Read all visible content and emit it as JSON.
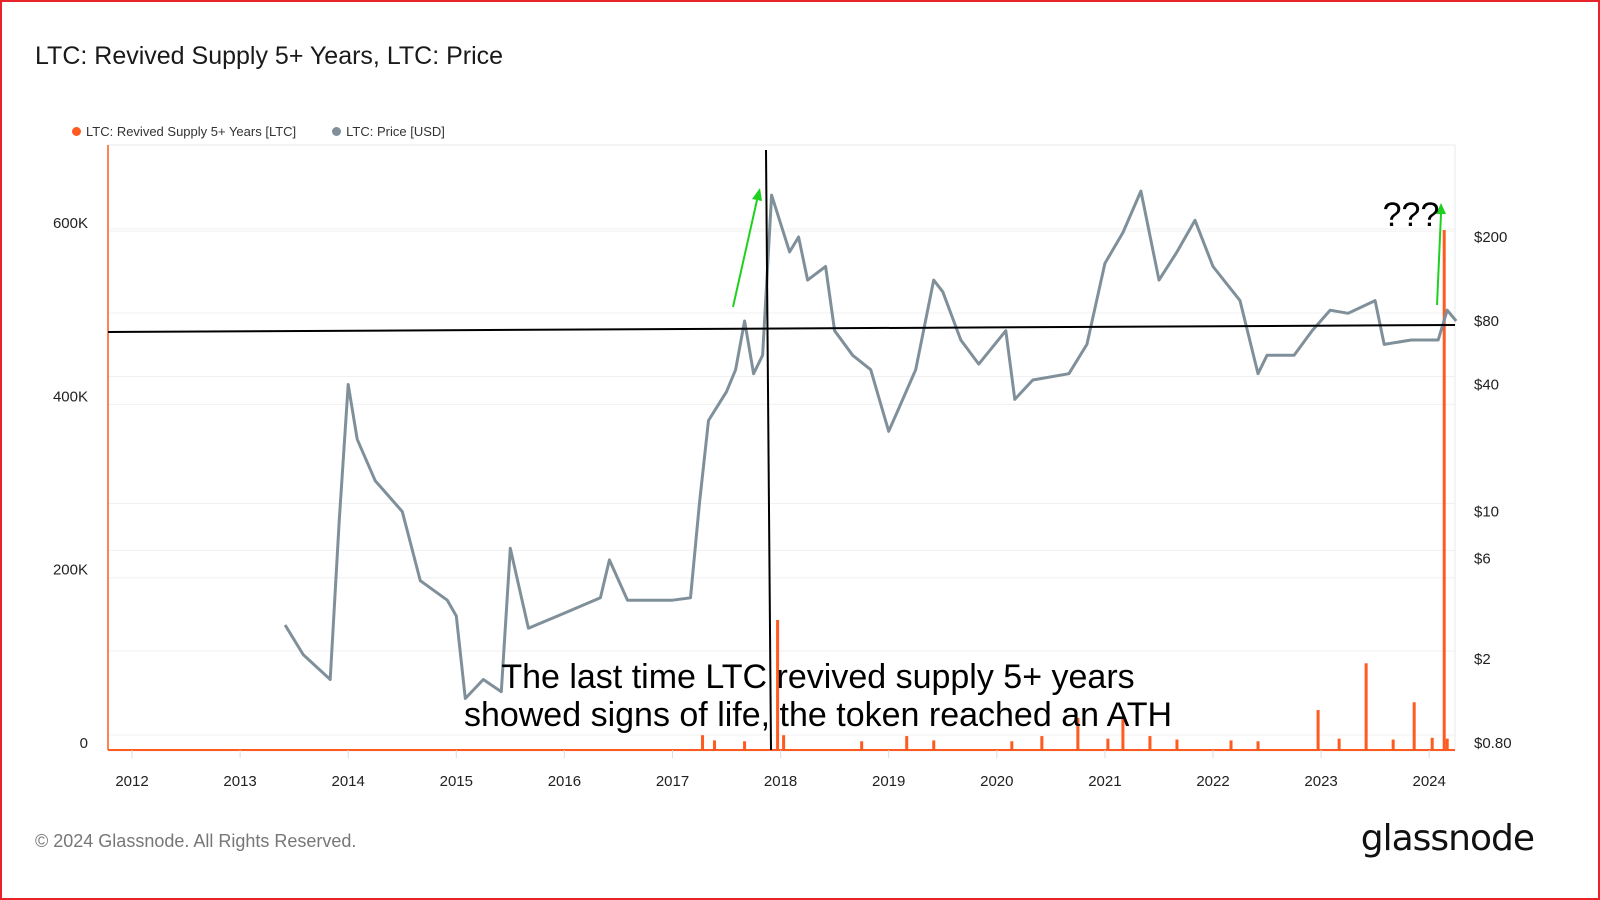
{
  "footer": {
    "copyright": "© 2024 Glassnode. All Rights Reserved.",
    "logo": "glassnode"
  },
  "colors": {
    "supply": "#ff5a1f",
    "price": "#80909a",
    "arrow": "#1fd11f",
    "annotation_line": "#000000",
    "border": "#e8242b"
  },
  "chart_data": {
    "type": "bar+line",
    "title": "LTC: Revived Supply 5+ Years, LTC: Price",
    "legend_placement": "top-left",
    "grid": true,
    "x_ticks": [
      "2012",
      "2013",
      "2014",
      "2015",
      "2016",
      "2017",
      "2018",
      "2019",
      "2020",
      "2021",
      "2022",
      "2023",
      "2024"
    ],
    "y_left": {
      "ticks": [
        "0",
        "200K",
        "400K",
        "600K"
      ],
      "tick_values": [
        0,
        200000,
        400000,
        600000
      ],
      "range": [
        0,
        700000
      ]
    },
    "y_right": {
      "scale": "log",
      "ticks": [
        "$0.80",
        "$2",
        "$6",
        "$10",
        "$40",
        "$80",
        "$200"
      ],
      "tick_values": [
        0.8,
        2,
        6,
        10,
        40,
        80,
        200
      ]
    },
    "series": [
      {
        "name": "LTC: Revived Supply 5+ Years [LTC]",
        "type": "bar",
        "axis": "left",
        "points": [
          [
            "2017-04",
            9000
          ],
          [
            "2017-05",
            3000
          ],
          [
            "2017-09",
            2000
          ],
          [
            "2017-12",
            142000
          ],
          [
            "2018-01",
            9000
          ],
          [
            "2018-10",
            2000
          ],
          [
            "2019-03",
            8000
          ],
          [
            "2019-06",
            3000
          ],
          [
            "2020-02",
            2000
          ],
          [
            "2020-06",
            8000
          ],
          [
            "2020-10",
            29000
          ],
          [
            "2021-01",
            5000
          ],
          [
            "2021-03",
            30000
          ],
          [
            "2021-06",
            8000
          ],
          [
            "2021-09",
            4000
          ],
          [
            "2022-03",
            3000
          ],
          [
            "2022-06",
            2000
          ],
          [
            "2022-12",
            38000
          ],
          [
            "2023-03",
            5000
          ],
          [
            "2023-06",
            92000
          ],
          [
            "2023-09",
            4000
          ],
          [
            "2023-11",
            47000
          ],
          [
            "2024-01",
            6000
          ],
          [
            "2024-02",
            592000
          ],
          [
            "2024-03",
            5000
          ]
        ]
      },
      {
        "name": "LTC: Price [USD]",
        "type": "line",
        "axis": "right",
        "points": [
          [
            "2013-06",
            2.9
          ],
          [
            "2013-08",
            2.1
          ],
          [
            "2013-11",
            1.6
          ],
          [
            "2013-12",
            9
          ],
          [
            "2014-01",
            40
          ],
          [
            "2014-02",
            22
          ],
          [
            "2014-04",
            14
          ],
          [
            "2014-07",
            10
          ],
          [
            "2014-09",
            4.7
          ],
          [
            "2014-12",
            3.8
          ],
          [
            "2015-01",
            3.2
          ],
          [
            "2015-02",
            1.3
          ],
          [
            "2015-04",
            1.6
          ],
          [
            "2015-06",
            1.4
          ],
          [
            "2015-07",
            6.7
          ],
          [
            "2015-09",
            2.8
          ],
          [
            "2016-01",
            3.3
          ],
          [
            "2016-05",
            3.9
          ],
          [
            "2016-06",
            5.9
          ],
          [
            "2016-08",
            3.8
          ],
          [
            "2017-01",
            3.8
          ],
          [
            "2017-03",
            3.9
          ],
          [
            "2017-04",
            11
          ],
          [
            "2017-05",
            27
          ],
          [
            "2017-07",
            37
          ],
          [
            "2017-08",
            47
          ],
          [
            "2017-09",
            80
          ],
          [
            "2017-10",
            45
          ],
          [
            "2017-11",
            55
          ],
          [
            "2017-12",
            316
          ],
          [
            "2018-02",
            170
          ],
          [
            "2018-03",
            200
          ],
          [
            "2018-04",
            125
          ],
          [
            "2018-06",
            145
          ],
          [
            "2018-07",
            72
          ],
          [
            "2018-09",
            55
          ],
          [
            "2018-11",
            47
          ],
          [
            "2019-01",
            24
          ],
          [
            "2019-02",
            30
          ],
          [
            "2019-04",
            47
          ],
          [
            "2019-06",
            125
          ],
          [
            "2019-07",
            110
          ],
          [
            "2019-09",
            65
          ],
          [
            "2019-11",
            50
          ],
          [
            "2020-02",
            72
          ],
          [
            "2020-03",
            34
          ],
          [
            "2020-05",
            42
          ],
          [
            "2020-09",
            45
          ],
          [
            "2020-11",
            62
          ],
          [
            "2021-01",
            150
          ],
          [
            "2021-03",
            210
          ],
          [
            "2021-05",
            330
          ],
          [
            "2021-07",
            125
          ],
          [
            "2021-09",
            170
          ],
          [
            "2021-11",
            240
          ],
          [
            "2022-01",
            145
          ],
          [
            "2022-04",
            100
          ],
          [
            "2022-06",
            45
          ],
          [
            "2022-07",
            55
          ],
          [
            "2022-10",
            55
          ],
          [
            "2022-12",
            72
          ],
          [
            "2023-02",
            90
          ],
          [
            "2023-04",
            87
          ],
          [
            "2023-07",
            100
          ],
          [
            "2023-08",
            62
          ],
          [
            "2023-11",
            65
          ],
          [
            "2024-02",
            65
          ],
          [
            "2024-03",
            90
          ],
          [
            "2024-04",
            80
          ]
        ]
      }
    ],
    "annotations": {
      "text_main_line1": "The last time LTC revived supply 5+ years",
      "text_main_line2": "showed signs of life, the token reached an ATH",
      "text_question": "???"
    }
  }
}
